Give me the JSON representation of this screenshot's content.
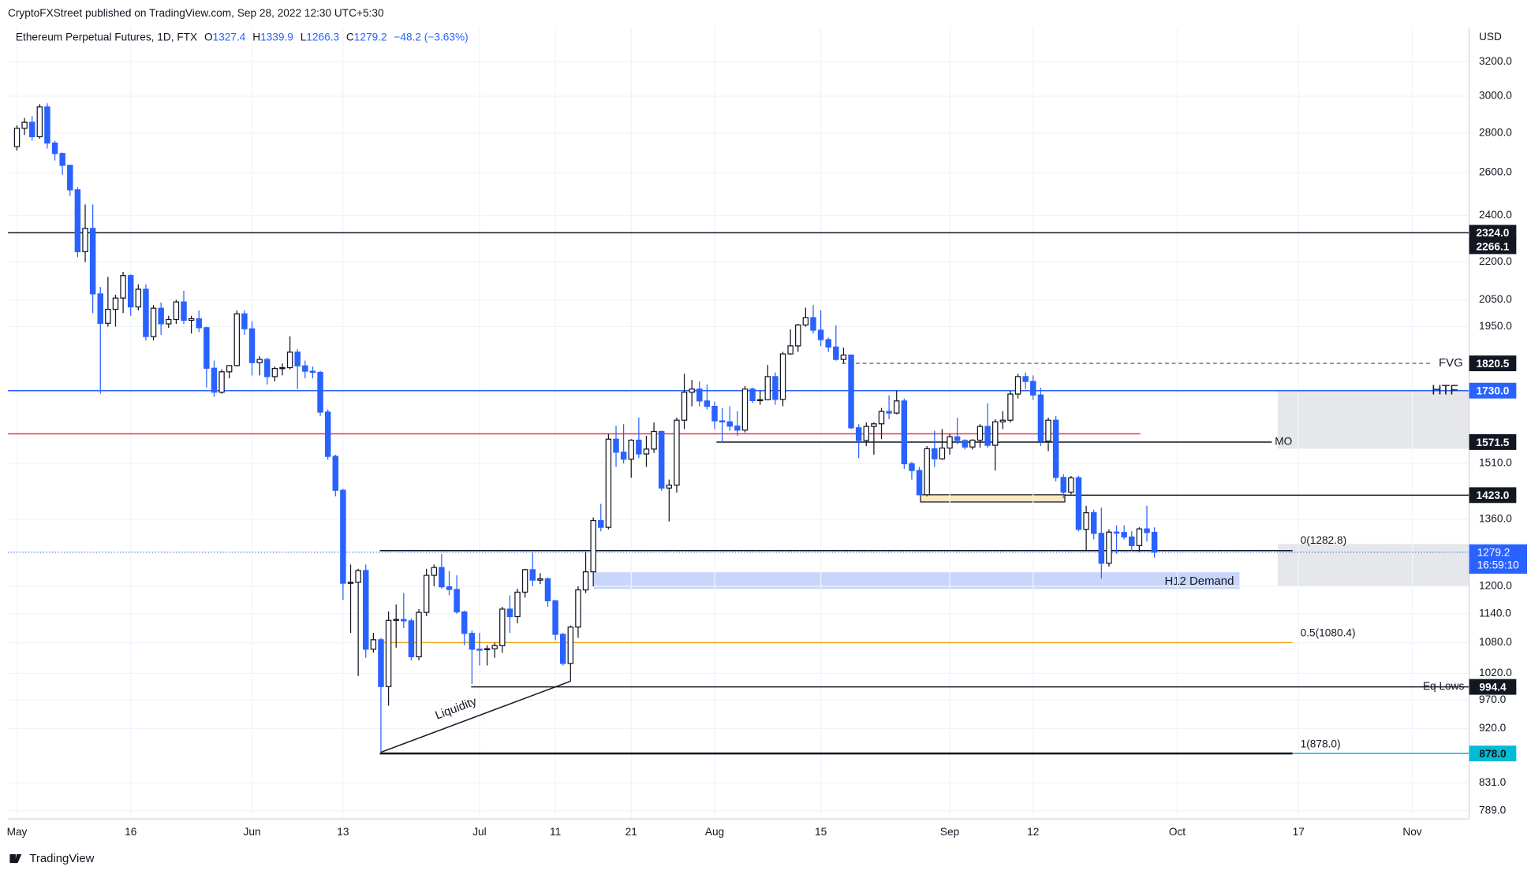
{
  "header": {
    "published": "CryptoFXStreet published on TradingView.com, Sep 28, 2022 12:30 UTC+5:30",
    "instrument": "Ethereum Perpetual Futures, 1D, FTX",
    "keys": [
      "O",
      "H",
      "L",
      "C"
    ],
    "change": "−48.2 (−3.63%)"
  },
  "footer": {
    "brand": "TradingView"
  },
  "chart_data": {
    "type": "candlestick",
    "currency": "USD",
    "log_scale": true,
    "grid": true,
    "up_color": "#ffffff",
    "down_color": "#2962ff",
    "x": [
      "May 1",
      "May 2",
      "May 3",
      "May 4",
      "May 5",
      "May 6",
      "May 7",
      "May 8",
      "May 9",
      "May 10",
      "May 11",
      "May 12",
      "May 13",
      "May 14",
      "May 15",
      "May 16",
      "May 17",
      "May 18",
      "May 19",
      "May 20",
      "May 21",
      "May 22",
      "May 23",
      "May 24",
      "May 25",
      "May 26",
      "May 27",
      "May 28",
      "May 29",
      "May 30",
      "May 31",
      "Jun 1",
      "Jun 2",
      "Jun 3",
      "Jun 4",
      "Jun 5",
      "Jun 6",
      "Jun 7",
      "Jun 8",
      "Jun 9",
      "Jun 10",
      "Jun 11",
      "Jun 12",
      "Jun 13",
      "Jun 14",
      "Jun 15",
      "Jun 16",
      "Jun 17",
      "Jun 18",
      "Jun 19",
      "Jun 20",
      "Jun 21",
      "Jun 22",
      "Jun 23",
      "Jun 24",
      "Jun 25",
      "Jun 26",
      "Jun 27",
      "Jun 28",
      "Jun 29",
      "Jun 30",
      "Jul 1",
      "Jul 2",
      "Jul 3",
      "Jul 4",
      "Jul 5",
      "Jul 6",
      "Jul 7",
      "Jul 8",
      "Jul 9",
      "Jul 10",
      "Jul 11",
      "Jul 12",
      "Jul 13",
      "Jul 14",
      "Jul 15",
      "Jul 16",
      "Jul 17",
      "Jul 18",
      "Jul 19",
      "Jul 20",
      "Jul 21",
      "Jul 22",
      "Jul 23",
      "Jul 24",
      "Jul 25",
      "Jul 26",
      "Jul 27",
      "Jul 28",
      "Jul 29",
      "Jul 30",
      "Jul 31",
      "Aug 1",
      "Aug 2",
      "Aug 3",
      "Aug 4",
      "Aug 5",
      "Aug 6",
      "Aug 7",
      "Aug 8",
      "Aug 9",
      "Aug 10",
      "Aug 11",
      "Aug 12",
      "Aug 13",
      "Aug 14",
      "Aug 15",
      "Aug 16",
      "Aug 17",
      "Aug 18",
      "Aug 19",
      "Aug 20",
      "Aug 21",
      "Aug 22",
      "Aug 23",
      "Aug 24",
      "Aug 25",
      "Aug 26",
      "Aug 27",
      "Aug 28",
      "Aug 29",
      "Aug 30",
      "Aug 31",
      "Sep 1",
      "Sep 2",
      "Sep 3",
      "Sep 4",
      "Sep 5",
      "Sep 6",
      "Sep 7",
      "Sep 8",
      "Sep 9",
      "Sep 10",
      "Sep 11",
      "Sep 12",
      "Sep 13",
      "Sep 14",
      "Sep 15",
      "Sep 16",
      "Sep 17",
      "Sep 18",
      "Sep 19",
      "Sep 20",
      "Sep 21",
      "Sep 22",
      "Sep 23",
      "Sep 24",
      "Sep 25",
      "Sep 26",
      "Sep 27",
      "Sep 28"
    ],
    "open": [
      2730,
      2825,
      2857,
      2781,
      2940,
      2748,
      2695,
      2636,
      2518,
      2243,
      2343,
      2073,
      1962,
      2014,
      2057,
      2145,
      2023,
      2091,
      1914,
      2018,
      1960,
      1976,
      2042,
      1973,
      1979,
      1946,
      1804,
      1725,
      1792,
      1813,
      1997,
      1942,
      1823,
      1834,
      1776,
      1803,
      1806,
      1859,
      1812,
      1794,
      1790,
      1662,
      1530,
      1436,
      1207,
      1209,
      1236,
      1067,
      1086,
      995,
      1126,
      1128,
      1125,
      1052,
      1143,
      1225,
      1243,
      1199,
      1193,
      1144,
      1099,
      1067,
      1066,
      1068,
      1074,
      1150,
      1134,
      1187,
      1238,
      1214,
      1217,
      1168,
      1097,
      1039,
      1112,
      1192,
      1233,
      1357,
      1340,
      1580,
      1542,
      1522,
      1577,
      1537,
      1551,
      1603,
      1442,
      1450,
      1637,
      1725,
      1735,
      1697,
      1680,
      1635,
      1632,
      1619,
      1607,
      1735,
      1698,
      1701,
      1776,
      1702,
      1853,
      1881,
      1956,
      1983,
      1937,
      1903,
      1877,
      1834,
      1849,
      1614,
      1576,
      1618,
      1626,
      1664,
      1659,
      1697,
      1509,
      1490,
      1424,
      1552,
      1523,
      1554,
      1587,
      1576,
      1557,
      1577,
      1618,
      1562,
      1632,
      1637,
      1719,
      1776,
      1760,
      1716,
      1574,
      1637,
      1471,
      1431,
      1470,
      1335,
      1377,
      1325,
      1253,
      1328,
      1327,
      1316,
      1295,
      1336,
      1327.4
    ],
    "high": [
      2840,
      2880,
      2890,
      2955,
      2960,
      2760,
      2700,
      2640,
      2530,
      2450,
      2450,
      2100,
      2140,
      2070,
      2160,
      2150,
      2110,
      2110,
      2030,
      2040,
      1990,
      2050,
      2085,
      1990,
      2010,
      1950,
      1830,
      1800,
      1815,
      2010,
      2010,
      1970,
      1845,
      1840,
      1810,
      1820,
      1915,
      1870,
      1830,
      1810,
      1795,
      1670,
      1535,
      1440,
      1250,
      1240,
      1250,
      1100,
      1090,
      1145,
      1160,
      1185,
      1130,
      1150,
      1240,
      1250,
      1275,
      1235,
      1225,
      1147,
      1105,
      1100,
      1075,
      1080,
      1155,
      1180,
      1195,
      1240,
      1280,
      1230,
      1220,
      1170,
      1100,
      1115,
      1200,
      1280,
      1365,
      1400,
      1595,
      1620,
      1625,
      1580,
      1645,
      1590,
      1630,
      1605,
      1465,
      1645,
      1785,
      1765,
      1760,
      1750,
      1695,
      1675,
      1680,
      1665,
      1745,
      1740,
      1730,
      1815,
      1790,
      1860,
      1940,
      1960,
      2020,
      2030,
      2010,
      1910,
      1955,
      1875,
      1850,
      1625,
      1630,
      1630,
      1675,
      1715,
      1730,
      1705,
      1515,
      1500,
      1560,
      1605,
      1610,
      1595,
      1645,
      1580,
      1580,
      1625,
      1690,
      1640,
      1665,
      1730,
      1785,
      1790,
      1780,
      1740,
      1645,
      1650,
      1480,
      1475,
      1475,
      1395,
      1385,
      1390,
      1335,
      1345,
      1345,
      1330,
      1340,
      1395,
      1339.9
    ],
    "low": [
      2710,
      2790,
      2760,
      2770,
      2720,
      2660,
      2590,
      2490,
      2220,
      2200,
      2000,
      1720,
      1950,
      1950,
      2000,
      1990,
      2010,
      1900,
      1900,
      1920,
      1945,
      1960,
      1960,
      1925,
      1930,
      1740,
      1710,
      1720,
      1770,
      1810,
      1920,
      1780,
      1780,
      1750,
      1760,
      1780,
      1800,
      1735,
      1770,
      1770,
      1650,
      1520,
      1420,
      1170,
      1100,
      1015,
      1050,
      1060,
      880,
      960,
      1070,
      1110,
      1045,
      1045,
      1135,
      1200,
      1195,
      1180,
      1140,
      1075,
      1000,
      1035,
      1035,
      1050,
      1060,
      1100,
      1120,
      1175,
      1200,
      1205,
      1155,
      1085,
      1035,
      1005,
      1090,
      1185,
      1200,
      1330,
      1335,
      1500,
      1510,
      1470,
      1525,
      1500,
      1540,
      1435,
      1355,
      1430,
      1610,
      1680,
      1680,
      1670,
      1610,
      1570,
      1605,
      1590,
      1600,
      1690,
      1685,
      1700,
      1685,
      1680,
      1850,
      1860,
      1950,
      1925,
      1880,
      1860,
      1830,
      1820,
      1610,
      1525,
      1560,
      1535,
      1580,
      1640,
      1655,
      1495,
      1465,
      1423,
      1420,
      1500,
      1520,
      1535,
      1565,
      1550,
      1550,
      1555,
      1555,
      1490,
      1610,
      1630,
      1705,
      1735,
      1700,
      1560,
      1545,
      1460,
      1415,
      1425,
      1330,
      1282,
      1310,
      1218,
      1245,
      1275,
      1310,
      1282,
      1280,
      1305,
      1266.3
    ],
    "close": [
      2825,
      2857,
      2781,
      2940,
      2748,
      2695,
      2636,
      2518,
      2243,
      2343,
      2073,
      1962,
      2014,
      2057,
      2145,
      2023,
      2091,
      1914,
      2018,
      1960,
      1976,
      2042,
      1973,
      1979,
      1946,
      1804,
      1725,
      1792,
      1813,
      1997,
      1942,
      1823,
      1834,
      1776,
      1803,
      1806,
      1859,
      1812,
      1794,
      1790,
      1662,
      1530,
      1436,
      1207,
      1209,
      1236,
      1067,
      1086,
      995,
      1126,
      1128,
      1125,
      1052,
      1143,
      1225,
      1243,
      1199,
      1193,
      1144,
      1099,
      1067,
      1066,
      1068,
      1074,
      1150,
      1134,
      1187,
      1238,
      1214,
      1217,
      1168,
      1097,
      1039,
      1112,
      1192,
      1233,
      1357,
      1340,
      1580,
      1542,
      1522,
      1577,
      1537,
      1551,
      1603,
      1442,
      1450,
      1637,
      1725,
      1735,
      1697,
      1680,
      1635,
      1632,
      1619,
      1607,
      1735,
      1698,
      1701,
      1776,
      1702,
      1853,
      1881,
      1956,
      1983,
      1937,
      1903,
      1877,
      1834,
      1849,
      1614,
      1576,
      1618,
      1626,
      1664,
      1659,
      1697,
      1509,
      1490,
      1424,
      1552,
      1523,
      1554,
      1587,
      1576,
      1557,
      1577,
      1618,
      1562,
      1632,
      1637,
      1719,
      1776,
      1760,
      1716,
      1574,
      1637,
      1471,
      1431,
      1470,
      1335,
      1377,
      1325,
      1253,
      1328,
      1327,
      1316,
      1295,
      1336,
      1327,
      1279.2
    ],
    "countdown": "16:59:10",
    "xlim": [
      -1.2,
      191.5
    ],
    "xticks": [
      {
        "value": 0,
        "label": "May"
      },
      {
        "value": 15,
        "label": "16"
      },
      {
        "value": 31,
        "label": "Jun"
      },
      {
        "value": 43,
        "label": "13"
      },
      {
        "value": 61,
        "label": "Jul"
      },
      {
        "value": 71,
        "label": "11"
      },
      {
        "value": 81,
        "label": "21"
      },
      {
        "value": 92,
        "label": "Aug"
      },
      {
        "value": 106,
        "label": "15"
      },
      {
        "value": 123,
        "label": "Sep"
      },
      {
        "value": 134,
        "label": "12"
      },
      {
        "value": 153,
        "label": "Oct"
      },
      {
        "value": 169,
        "label": "17"
      },
      {
        "value": 184,
        "label": "Nov"
      }
    ],
    "ylim": [
      777,
      3410
    ],
    "yticks": [
      {
        "value": 3200,
        "label": "3200.0"
      },
      {
        "value": 3000,
        "label": "3000.0"
      },
      {
        "value": 2800,
        "label": "2800.0"
      },
      {
        "value": 2600,
        "label": "2600.0"
      },
      {
        "value": 2400,
        "label": "2400.0"
      },
      {
        "value": 2200,
        "label": "2200.0"
      },
      {
        "value": 2050,
        "label": "2050.0"
      },
      {
        "value": 1950,
        "label": "1950.0"
      },
      {
        "value": 1510,
        "label": "1510.0"
      },
      {
        "value": 1360,
        "label": "1360.0"
      },
      {
        "value": 1200,
        "label": "1200.0"
      },
      {
        "value": 1140,
        "label": "1140.0"
      },
      {
        "value": 1080,
        "label": "1080.0"
      },
      {
        "value": 1020,
        "label": "1020.0"
      },
      {
        "value": 970,
        "label": "970.0"
      },
      {
        "value": 920,
        "label": "920.0"
      },
      {
        "value": 831,
        "label": "831.0"
      },
      {
        "value": 789,
        "label": "789.0"
      }
    ],
    "zones": [
      {
        "label": "H12 Demand",
        "low": 1194,
        "high": 1232,
        "color": "#c9d6fb"
      },
      {
        "low": 1552,
        "high": 1733,
        "color": "#e6e7eb"
      },
      {
        "low": 1201,
        "high": 1299,
        "color": "#e6e7eb"
      },
      {
        "low": 1405,
        "high": 1424,
        "color": "#fde7c0"
      }
    ],
    "levels": [
      {
        "value": 2324,
        "color": "#131722"
      },
      {
        "value": 1730,
        "color": "#2962ff",
        "label": "HTF",
        "label_color": "#131722"
      },
      {
        "value": 1596,
        "color": "#f23645"
      },
      {
        "value": 1820.5,
        "color": "#787b86",
        "label": "FVG",
        "label_color": "#43a047",
        "dashed": true
      },
      {
        "value": 1571.5,
        "color": "#131722",
        "label": "MO",
        "label_color": "#131722"
      },
      {
        "value": 1423,
        "color": "#131722"
      },
      {
        "value": 1282.8,
        "color": "#131722",
        "label": "0(1282.8)",
        "label_color": "#131722"
      },
      {
        "value": 1080.4,
        "color": "#f5a623",
        "label": "0.5(1080.4)",
        "label_color": "#f5a623"
      },
      {
        "value": 994.4,
        "color": "#131722",
        "label": "Eq Lows",
        "label_color": "#f23645"
      },
      {
        "value": 878,
        "color": "#131722",
        "label": "1(878.0)",
        "label_color": "#131722"
      }
    ],
    "trendline": {
      "label": "Liquidity"
    },
    "price_tags": [
      {
        "value": 2324,
        "label": "2324.0",
        "color": "#131722"
      },
      {
        "value": 2266.1,
        "label": "2266.1",
        "color": "#131722"
      },
      {
        "value": 1820.5,
        "label": "1820.5",
        "color": "#131722"
      },
      {
        "value": 1730,
        "label": "1730.0",
        "color": "#2962ff"
      },
      {
        "value": 1571.5,
        "label": "1571.5",
        "color": "#131722"
      },
      {
        "value": 1423,
        "label": "1423.0",
        "color": "#131722"
      },
      {
        "value": 994.4,
        "label": "994.4",
        "color": "#131722"
      },
      {
        "value": 878,
        "label": "878.0",
        "color": "#00bcd4",
        "text_color": "#131722"
      }
    ]
  }
}
